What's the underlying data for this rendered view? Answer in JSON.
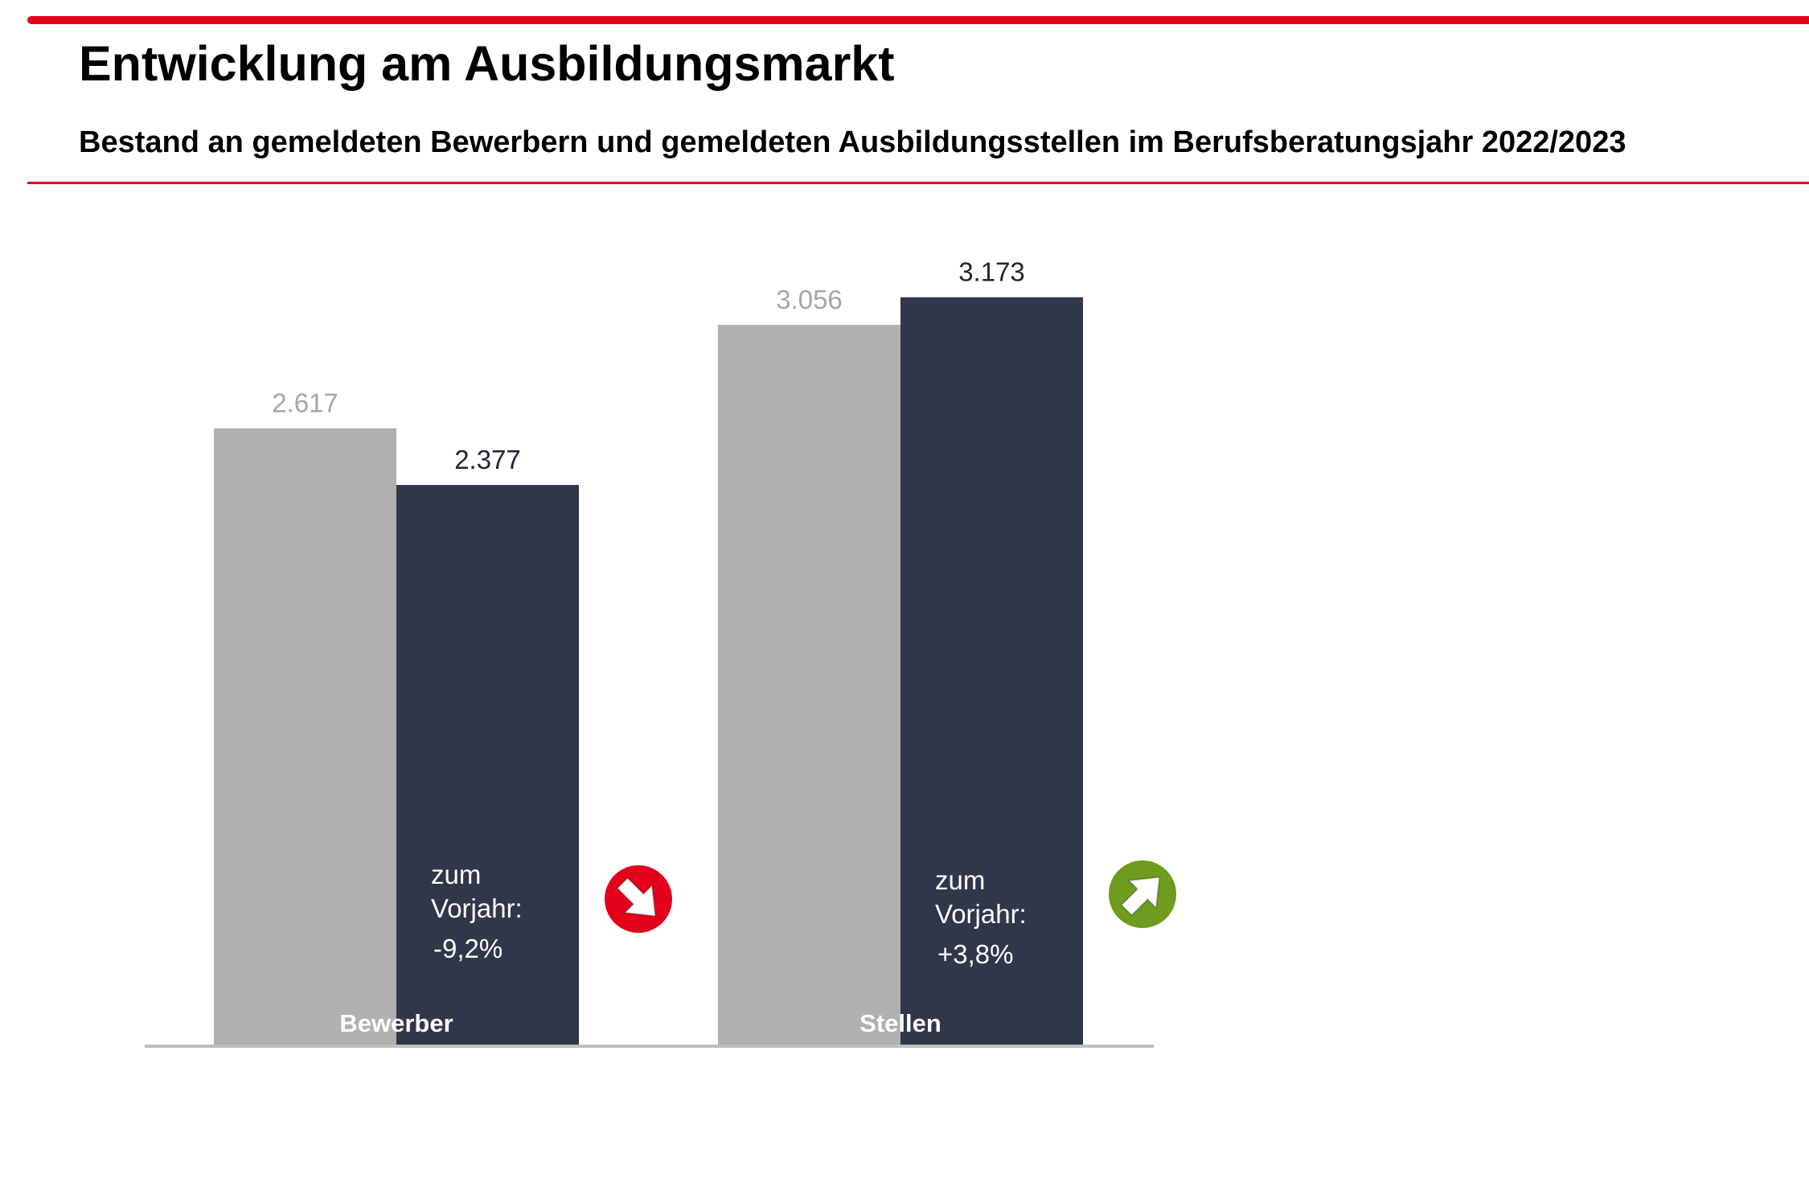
{
  "header": {
    "title": "Entwicklung am Ausbildungsmarkt",
    "subtitle": "Bestand an gemeldeten Bewerbern und gemeldeten Ausbildungsstellen im Berufsberatungsjahr 2022/2023"
  },
  "colors": {
    "accent_red": "#e3001b",
    "bar_previous_year": "#b0b0b0",
    "bar_current_year": "#30374a",
    "label_previous_year": "#a6a6a6",
    "label_current_year": "#1f2433",
    "trend_down": "#e3001b",
    "trend_up": "#6f9b1e",
    "baseline": "#bfbfbf"
  },
  "chart_data": {
    "type": "bar",
    "categories": [
      "Bewerber",
      "Stellen"
    ],
    "series": [
      {
        "values": [
          2617,
          3056
        ],
        "value_labels": [
          "2.617",
          "3.056"
        ]
      },
      {
        "values": [
          2377,
          3173
        ],
        "value_labels": [
          "2.377",
          "3.173"
        ]
      }
    ],
    "changes": [
      {
        "line1": "zum",
        "line2": "Vorjahr:",
        "value": "-9,2%",
        "trend": "down",
        "icon": "arrow-down-right-icon"
      },
      {
        "line1": "zum",
        "line2": "Vorjahr:",
        "value": "+3,8%",
        "trend": "up",
        "icon": "arrow-up-right-icon"
      }
    ],
    "ylim": [
      0,
      3800
    ],
    "grid": false,
    "legend": "none"
  }
}
